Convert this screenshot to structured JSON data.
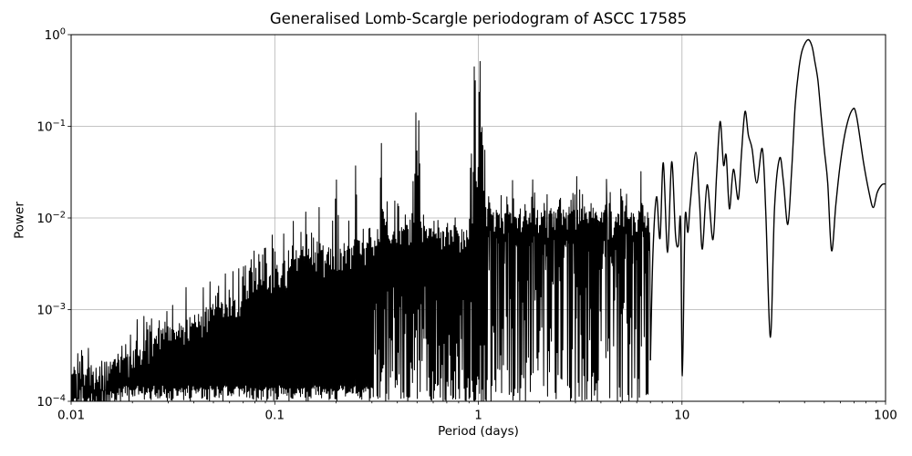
{
  "figure": {
    "title": "Generalised Lomb-Scargle periodogram of ASCC 17585",
    "xlabel": "Period (days)",
    "ylabel": "Power"
  },
  "chart_data": {
    "type": "line",
    "title": "Generalised Lomb-Scargle periodogram of ASCC 17585",
    "xlabel": "Period (days)",
    "ylabel": "Power",
    "xscale": "log",
    "yscale": "log",
    "xlim": [
      0.01,
      100
    ],
    "ylim": [
      0.0001,
      1
    ],
    "x_tick_values": [
      0.01,
      0.1,
      1,
      10,
      100
    ],
    "x_ticklabels": [
      "0.01",
      "0.1",
      "1",
      "10",
      "100"
    ],
    "y_tick_exponents": [
      0,
      -1,
      -2,
      -3,
      -4
    ],
    "grid": true,
    "legend": false,
    "line_color": "#000000",
    "grid_color": "#b0b0b0",
    "background": "#ffffff",
    "notable_peaks": [
      {
        "period_days": 41.5,
        "power": 0.88
      },
      {
        "period_days": 1.0,
        "power": 0.51
      },
      {
        "period_days": 0.96,
        "power": 0.45
      },
      {
        "period_days": 68.8,
        "power": 0.15
      },
      {
        "period_days": 20.4,
        "power": 0.145
      },
      {
        "period_days": 15.4,
        "power": 0.11
      },
      {
        "period_days": 0.5,
        "power": 0.14
      },
      {
        "period_days": 0.333,
        "power": 0.065
      }
    ],
    "dense_region": [
      0.01,
      7.0
    ],
    "alias_spikes": [
      [
        0.0625,
        0.0026
      ],
      [
        0.0665,
        0.0028
      ],
      [
        0.0715,
        0.003
      ],
      [
        0.077,
        0.0035
      ],
      [
        0.0835,
        0.004
      ],
      [
        0.0905,
        0.0047
      ],
      [
        0.0977,
        0.0065
      ],
      [
        0.111,
        0.0067
      ],
      [
        0.1235,
        0.0092
      ],
      [
        0.1425,
        0.0116
      ],
      [
        0.1655,
        0.013
      ],
      [
        0.2,
        0.026
      ],
      [
        0.25,
        0.037
      ],
      [
        0.3335,
        0.065
      ],
      [
        0.478,
        0.025
      ],
      [
        0.494,
        0.14
      ],
      [
        0.51,
        0.115
      ],
      [
        0.92,
        0.05
      ],
      [
        0.96,
        0.445
      ],
      [
        1.017,
        0.51
      ],
      [
        1.046,
        0.097
      ],
      [
        1.075,
        0.055
      ],
      [
        1.7,
        0.014
      ],
      [
        3.25,
        0.018
      ],
      [
        6.3,
        0.032
      ]
    ],
    "noise_envelope": [
      [
        0.01,
        0.0002
      ],
      [
        0.015,
        0.00026
      ],
      [
        0.02,
        0.00035
      ],
      [
        0.03,
        0.0006
      ],
      [
        0.045,
        0.001
      ],
      [
        0.06,
        0.0013
      ],
      [
        0.08,
        0.002
      ],
      [
        0.1,
        0.003
      ],
      [
        0.15,
        0.004
      ],
      [
        0.2,
        0.0045
      ],
      [
        0.3,
        0.006
      ],
      [
        0.5,
        0.008
      ],
      [
        0.7,
        0.007
      ],
      [
        0.85,
        0.008
      ],
      [
        0.95,
        0.012
      ],
      [
        1.0,
        0.055
      ],
      [
        1.05,
        0.012
      ],
      [
        1.3,
        0.011
      ],
      [
        2,
        0.012
      ],
      [
        3,
        0.012
      ],
      [
        5,
        0.011
      ],
      [
        7,
        0.012
      ]
    ],
    "resolved_curve": [
      [
        7.0,
        0.00028
      ],
      [
        7.2,
        0.004
      ],
      [
        7.5,
        0.017
      ],
      [
        7.8,
        0.006
      ],
      [
        8.1,
        0.04
      ],
      [
        8.5,
        0.0042
      ],
      [
        8.9,
        0.041
      ],
      [
        9.3,
        0.0065
      ],
      [
        9.6,
        0.005
      ],
      [
        9.85,
        0.009
      ],
      [
        10.05,
        0.00019
      ],
      [
        10.35,
        0.0095
      ],
      [
        10.7,
        0.007
      ],
      [
        11.0,
        0.015
      ],
      [
        11.7,
        0.052
      ],
      [
        12.2,
        0.015
      ],
      [
        12.6,
        0.0046
      ],
      [
        13.3,
        0.023
      ],
      [
        14.2,
        0.0058
      ],
      [
        14.8,
        0.03
      ],
      [
        15.4,
        0.113
      ],
      [
        16.0,
        0.038
      ],
      [
        16.5,
        0.048
      ],
      [
        17.1,
        0.0126
      ],
      [
        17.9,
        0.034
      ],
      [
        18.9,
        0.016
      ],
      [
        19.6,
        0.05
      ],
      [
        20.4,
        0.145
      ],
      [
        21.2,
        0.08
      ],
      [
        22.1,
        0.057
      ],
      [
        23.3,
        0.024
      ],
      [
        24.8,
        0.057
      ],
      [
        25.8,
        0.012
      ],
      [
        27.2,
        0.0005
      ],
      [
        28.5,
        0.013
      ],
      [
        30.2,
        0.045
      ],
      [
        31.5,
        0.025
      ],
      [
        33.1,
        0.0085
      ],
      [
        34.5,
        0.03
      ],
      [
        36,
        0.17
      ],
      [
        37.5,
        0.42
      ],
      [
        39,
        0.68
      ],
      [
        41.5,
        0.88
      ],
      [
        43.5,
        0.75
      ],
      [
        45,
        0.5
      ],
      [
        46.5,
        0.32
      ],
      [
        48,
        0.15
      ],
      [
        50,
        0.056
      ],
      [
        52,
        0.024
      ],
      [
        54.3,
        0.0044
      ],
      [
        57,
        0.014
      ],
      [
        60,
        0.04
      ],
      [
        64,
        0.095
      ],
      [
        68.8,
        0.152
      ],
      [
        72,
        0.13
      ],
      [
        78,
        0.04
      ],
      [
        83,
        0.019
      ],
      [
        87,
        0.013
      ],
      [
        91,
        0.019
      ],
      [
        96,
        0.023
      ],
      [
        100,
        0.0235
      ]
    ]
  }
}
